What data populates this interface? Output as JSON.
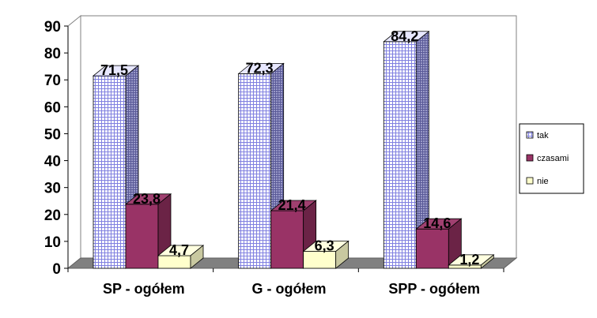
{
  "chart_data": {
    "type": "bar",
    "style": "3d-clustered",
    "categories": [
      "SP - ogółem",
      "G - ogółem",
      "SPP - ogółem"
    ],
    "series": [
      {
        "name": "tak",
        "values": [
          71.5,
          72.3,
          84.2
        ],
        "labels": [
          "71,5",
          "72,3",
          "84,2"
        ],
        "color": "#c8c8f0"
      },
      {
        "name": "czasami",
        "values": [
          23.8,
          21.4,
          14.6
        ],
        "labels": [
          "23,8",
          "21,4",
          "14,6"
        ],
        "color": "#993366"
      },
      {
        "name": "nie",
        "values": [
          4.7,
          6.3,
          1.2
        ],
        "labels": [
          "4,7",
          "6,3",
          "1,2"
        ],
        "color": "#ffffcc"
      }
    ],
    "yticks": [
      "0",
      "10",
      "20",
      "30",
      "40",
      "50",
      "60",
      "70",
      "80",
      "90"
    ],
    "ylim": [
      0,
      90
    ],
    "grid": false,
    "legend": "right"
  }
}
